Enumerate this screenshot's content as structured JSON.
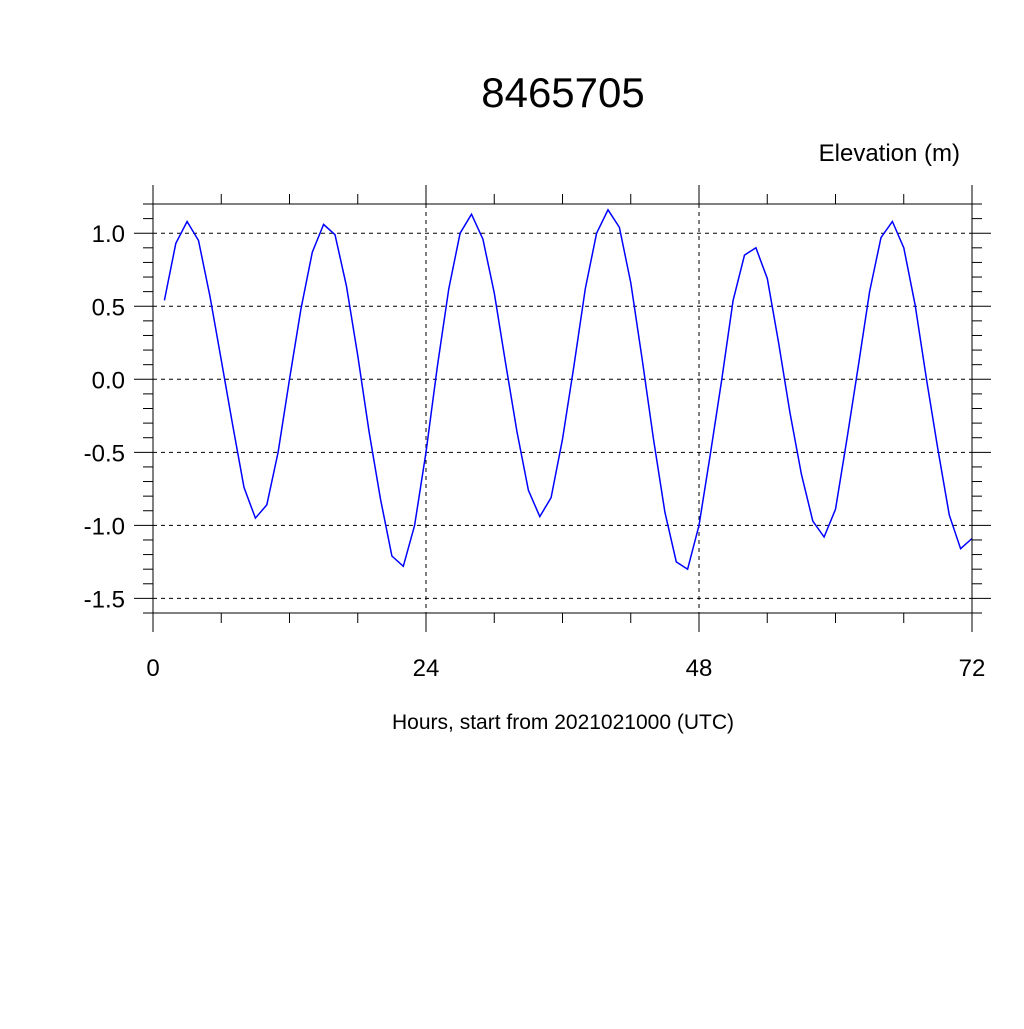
{
  "chart_data": {
    "type": "line",
    "title": "8465705",
    "subtitle": "Elevation (m)",
    "xlabel": "Hours, start from 2021021000 (UTC)",
    "ylabel": "",
    "xlim": [
      0,
      72
    ],
    "ylim": [
      -1.6,
      1.2
    ],
    "xticks": [
      0,
      24,
      48,
      72
    ],
    "xtick_labels": [
      "0",
      "24",
      "48",
      "72"
    ],
    "yticks": [
      1.0,
      0.5,
      0.0,
      -0.5,
      -1.0,
      -1.5
    ],
    "ytick_labels": [
      "1.0",
      "0.5",
      "0.0",
      "-0.5",
      "-1.0",
      "-1.5"
    ],
    "grid": true,
    "line_color": "#0000ff",
    "series": [
      {
        "x": [
          1,
          2,
          3,
          4,
          5,
          6,
          7,
          8,
          9,
          10,
          11,
          12,
          13,
          14,
          15,
          16,
          17,
          18,
          19,
          20,
          21,
          22,
          23,
          24,
          25,
          26,
          27,
          28,
          29,
          30,
          31,
          32,
          33,
          34,
          35,
          36,
          37,
          38,
          39,
          40,
          41,
          42,
          43,
          44,
          45,
          46,
          47,
          48,
          49,
          50,
          51,
          52,
          53,
          54,
          55,
          56,
          57,
          58,
          59,
          60,
          61,
          62,
          63,
          64,
          65,
          66,
          67,
          68,
          69,
          70,
          71,
          72
        ],
        "y": [
          0.54,
          0.93,
          1.08,
          0.95,
          0.57,
          0.13,
          -0.31,
          -0.74,
          -0.95,
          -0.86,
          -0.5,
          0.0,
          0.48,
          0.87,
          1.06,
          0.99,
          0.64,
          0.16,
          -0.36,
          -0.82,
          -1.21,
          -1.28,
          -1.0,
          -0.5,
          0.09,
          0.62,
          1.0,
          1.13,
          0.96,
          0.59,
          0.11,
          -0.36,
          -0.76,
          -0.94,
          -0.81,
          -0.41,
          0.09,
          0.62,
          1.0,
          1.16,
          1.04,
          0.66,
          0.14,
          -0.41,
          -0.91,
          -1.25,
          -1.3,
          -1.0,
          -0.51,
          0.0,
          0.54,
          0.85,
          0.9,
          0.69,
          0.25,
          -0.23,
          -0.65,
          -0.97,
          -1.08,
          -0.89,
          -0.41,
          0.09,
          0.6,
          0.97,
          1.08,
          0.9,
          0.51,
          0.0,
          -0.48,
          -0.93,
          -1.16,
          -1.09
        ]
      }
    ]
  }
}
